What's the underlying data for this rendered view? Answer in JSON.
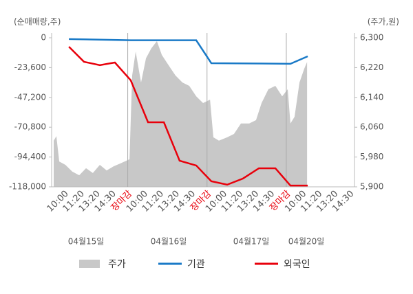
{
  "chart_data": {
    "type": "line",
    "left_axis_title": "(순매매량,주)",
    "right_axis_title": "(주가,원)",
    "categories": [
      "10:00",
      "11:20",
      "13:20",
      "14:30",
      "장마감",
      "10:00",
      "11:20",
      "13:20",
      "14:30",
      "장마감",
      "10:00",
      "11:20",
      "13:20",
      "14:30",
      "장마감",
      "10:00",
      "11:20",
      "13:20",
      "14:30"
    ],
    "dates": [
      "04월15일",
      "04월16일",
      "04월17일",
      "04월20일"
    ],
    "xlim": [
      -0.8,
      18.3
    ],
    "xgrid": [
      4,
      9,
      14
    ],
    "highlight_color": "#e8000b",
    "ylim": [
      -118000,
      3800
    ],
    "yticks": [
      0,
      {
        "value": -23600,
        "label": "-23,600"
      },
      {
        "value": -47200,
        "label": "-47,200"
      },
      {
        "value": -70800,
        "label": "-70,800"
      },
      {
        "value": -94400,
        "label": "-94,400"
      },
      {
        "value": -118000,
        "label": "-118,000"
      }
    ],
    "y2lim": [
      5900,
      6313
    ],
    "y2ticks": [
      {
        "value": 6300,
        "label": "6,300"
      },
      {
        "value": 6220,
        "label": "6,220"
      },
      {
        "value": 6140,
        "label": "6,140"
      },
      {
        "value": 6060,
        "label": "6,060"
      },
      {
        "value": 5980,
        "label": "5,980"
      },
      {
        "value": 5900,
        "label": "5,900"
      }
    ],
    "series": [
      {
        "name": "주가",
        "kind": "area",
        "axis": "y2",
        "color": "#c8c8c8",
        "x": [
          -0.67,
          -0.5,
          -0.32,
          0.07,
          0.5,
          0.94,
          1.37,
          1.8,
          2.24,
          2.67,
          3.11,
          3.54,
          4.11,
          4.28,
          4.5,
          4.84,
          5.15,
          5.49,
          5.84,
          6.15,
          6.58,
          7.01,
          7.45,
          7.88,
          8.32,
          8.75,
          9.19,
          9.4,
          9.75,
          10.27,
          10.7,
          11.14,
          11.66,
          12.09,
          12.44,
          12.87,
          13.31,
          13.74,
          14.09,
          14.26,
          14.52,
          14.83,
          15.13,
          15.31
        ],
        "values": [
          6024,
          6036,
          5968,
          5959,
          5941,
          5931,
          5950,
          5937,
          5959,
          5944,
          5955,
          5963,
          5974,
          6199,
          6263,
          6180,
          6245,
          6272,
          6291,
          6254,
          6226,
          6199,
          6180,
          6171,
          6143,
          6125,
          6134,
          6033,
          6024,
          6033,
          6042,
          6070,
          6070,
          6079,
          6125,
          6162,
          6171,
          6143,
          6162,
          6070,
          6088,
          6180,
          6217,
          6235
        ]
      },
      {
        "name": "기관",
        "kind": "line",
        "color": "#1a7ac7",
        "x": [
          0.29,
          4.19,
          8.32,
          9.27,
          14.26,
          15.35
        ],
        "values": [
          -1000,
          -2000,
          -2000,
          -20100,
          -20600,
          -14700
        ]
      },
      {
        "name": "외국인",
        "kind": "line",
        "color": "#e8000b",
        "x": [
          0.29,
          1.24,
          2.24,
          3.19,
          4.19,
          5.28,
          6.28,
          7.27,
          8.32,
          9.27,
          10.27,
          11.27,
          12.27,
          13.31,
          14.26,
          15.35
        ],
        "values": [
          -7100,
          -19000,
          -21700,
          -19600,
          -33700,
          -66900,
          -66900,
          -97300,
          -101100,
          -113600,
          -116300,
          -111400,
          -103300,
          -103300,
          -117000,
          -117000
        ]
      }
    ]
  }
}
